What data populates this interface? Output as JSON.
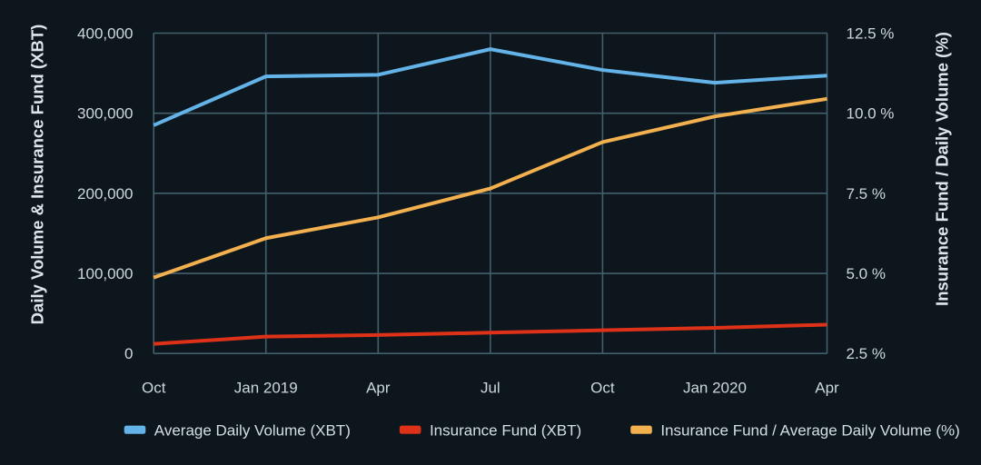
{
  "chart_data": {
    "type": "line",
    "x": [
      "Oct",
      "Jan 2019",
      "Apr",
      "Jul",
      "Oct",
      "Jan 2020",
      "Apr"
    ],
    "series": [
      {
        "name": "Average Daily Volume (XBT)",
        "axis": "left",
        "color": "#64b3e8",
        "values": [
          285000,
          346000,
          348000,
          380000,
          354000,
          338000,
          347000
        ]
      },
      {
        "name": "Insurance Fund (XBT)",
        "axis": "left",
        "color": "#dd3118",
        "values": [
          12000,
          21000,
          23000,
          26000,
          29000,
          32000,
          36000
        ]
      },
      {
        "name": "Insurance Fund / Average Daily Volume (%)",
        "axis": "right",
        "color": "#f2b04f",
        "values": [
          4.87,
          6.1,
          6.75,
          7.65,
          9.1,
          9.9,
          10.45
        ]
      }
    ],
    "left_axis": {
      "title": "Daily Volume & Insurance Fund (XBT)",
      "range": [
        0,
        400000
      ],
      "ticks": [
        {
          "value": 0,
          "label": "0"
        },
        {
          "value": 100000,
          "label": "100,000"
        },
        {
          "value": 200000,
          "label": "200,000"
        },
        {
          "value": 300000,
          "label": "300,000"
        },
        {
          "value": 400000,
          "label": "400,000"
        }
      ]
    },
    "right_axis": {
      "title": "Insurance Fund / Daily Volume (%)",
      "range": [
        2.5,
        12.5
      ],
      "ticks": [
        {
          "value": 2.5,
          "label": "2.5 %"
        },
        {
          "value": 5.0,
          "label": "5.0 %"
        },
        {
          "value": 7.5,
          "label": "7.5 %"
        },
        {
          "value": 10.0,
          "label": "10.0 %"
        },
        {
          "value": 12.5,
          "label": "12.5 %"
        }
      ]
    },
    "grid": true,
    "legend_position": "bottom",
    "colors": {
      "background": "#0e161d",
      "grid": "#42606b",
      "tick_text": "#ccd7db",
      "axis_title_text": "#dde7ea",
      "legend_text": "#d3dee2"
    }
  }
}
